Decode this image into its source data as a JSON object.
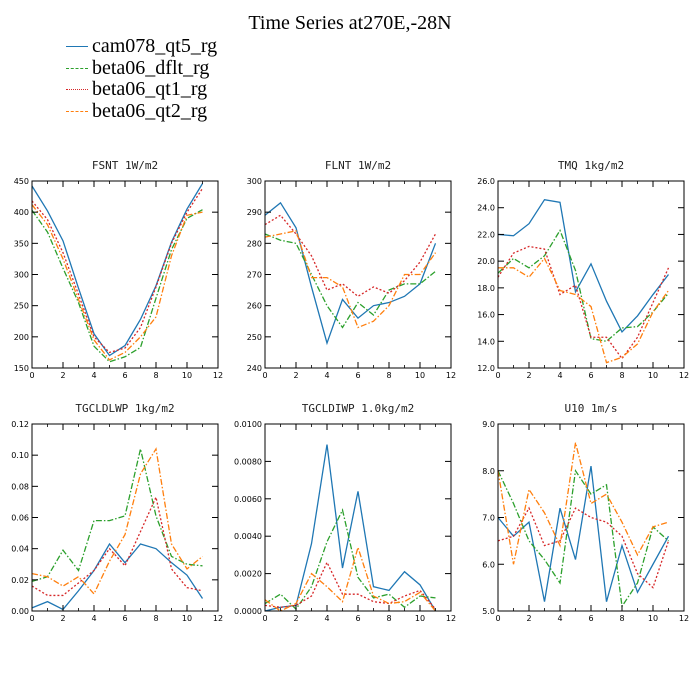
{
  "title": "Time Series at270E,-28N",
  "legend": [
    {
      "name": "cam078_qt5_rg",
      "color": "#1f77b4",
      "style": "solid"
    },
    {
      "name": "beta06_dflt_rg",
      "color": "#2ca02c",
      "style": "dashdot"
    },
    {
      "name": "beta06_qt1_rg",
      "color": "#d62728",
      "style": "dotted"
    },
    {
      "name": "beta06_qt2_rg",
      "color": "#ff7f0e",
      "style": "dashdot"
    }
  ],
  "chart_data": [
    {
      "type": "line",
      "title": "FSNT  1W/m2",
      "x": [
        0,
        1,
        2,
        3,
        4,
        5,
        6,
        7,
        8,
        9,
        10,
        11
      ],
      "xlim": [
        0,
        12
      ],
      "xticks": [
        0,
        2,
        4,
        6,
        8,
        10,
        12
      ],
      "ylim": [
        150,
        450
      ],
      "yticks": [
        150,
        200,
        250,
        300,
        350,
        400,
        450
      ],
      "yticklabels": [
        "150",
        "200",
        "250",
        "300",
        "350",
        "400",
        "450"
      ],
      "series": [
        {
          "name": "cam078_qt5_rg",
          "values": [
            442,
            402,
            354,
            278,
            205,
            170,
            186,
            228,
            282,
            352,
            405,
            446
          ]
        },
        {
          "name": "beta06_dflt_rg",
          "values": [
            403,
            368,
            310,
            255,
            185,
            160,
            168,
            183,
            262,
            340,
            390,
            404
          ]
        },
        {
          "name": "beta06_qt1_rg",
          "values": [
            418,
            388,
            335,
            268,
            200,
            175,
            182,
            215,
            280,
            350,
            400,
            438
          ]
        },
        {
          "name": "beta06_qt2_rg",
          "values": [
            412,
            380,
            325,
            260,
            195,
            163,
            175,
            200,
            232,
            330,
            395,
            400
          ]
        }
      ]
    },
    {
      "type": "line",
      "title": "FLNT  1W/m2",
      "x": [
        0,
        1,
        2,
        3,
        4,
        5,
        6,
        7,
        8,
        9,
        10,
        11
      ],
      "xlim": [
        0,
        12
      ],
      "xticks": [
        0,
        2,
        4,
        6,
        8,
        10,
        12
      ],
      "ylim": [
        240,
        300
      ],
      "yticks": [
        240,
        250,
        260,
        270,
        280,
        290,
        300
      ],
      "yticklabels": [
        "240",
        "250",
        "260",
        "270",
        "280",
        "290",
        "300"
      ],
      "series": [
        {
          "name": "cam078_qt5_rg",
          "values": [
            289,
            293,
            285,
            266,
            248,
            262,
            256,
            260,
            261,
            263,
            267,
            280
          ]
        },
        {
          "name": "beta06_dflt_rg",
          "values": [
            283,
            281,
            280,
            270,
            260,
            253,
            261,
            257,
            265,
            267,
            267,
            271
          ]
        },
        {
          "name": "beta06_qt1_rg",
          "values": [
            286,
            289,
            283,
            276,
            265,
            267,
            263,
            266,
            264,
            268,
            274,
            283
          ]
        },
        {
          "name": "beta06_qt2_rg",
          "values": [
            282,
            283,
            284,
            269,
            269,
            266,
            253,
            255,
            260,
            270,
            270,
            277
          ]
        }
      ]
    },
    {
      "type": "line",
      "title": "TMQ  1kg/m2",
      "x": [
        0,
        1,
        2,
        3,
        4,
        5,
        6,
        7,
        8,
        9,
        10,
        11
      ],
      "xlim": [
        0,
        12
      ],
      "xticks": [
        0,
        2,
        4,
        6,
        8,
        10,
        12
      ],
      "ylim": [
        12,
        26
      ],
      "yticks": [
        12,
        14,
        16,
        18,
        20,
        22,
        24,
        26
      ],
      "yticklabels": [
        "12.0",
        "14.0",
        "16.0",
        "18.0",
        "20.0",
        "22.0",
        "24.0",
        "26.0"
      ],
      "series": [
        {
          "name": "cam078_qt5_rg",
          "values": [
            22.0,
            21.9,
            22.8,
            24.6,
            24.4,
            17.7,
            19.8,
            17.0,
            14.7,
            15.9,
            17.5,
            19.0
          ]
        },
        {
          "name": "beta06_dflt_rg",
          "values": [
            19.1,
            20.2,
            19.5,
            20.4,
            22.3,
            19.3,
            14.2,
            14.0,
            15.0,
            15.1,
            16.2,
            17.6
          ]
        },
        {
          "name": "beta06_qt1_rg",
          "values": [
            18.8,
            20.6,
            21.1,
            20.9,
            17.5,
            18.2,
            14.3,
            14.3,
            12.7,
            14.3,
            16.9,
            19.5
          ]
        },
        {
          "name": "beta06_qt2_rg",
          "values": [
            19.5,
            19.5,
            18.8,
            20.2,
            17.8,
            17.5,
            16.6,
            12.4,
            12.8,
            13.8,
            16.2,
            17.8
          ]
        }
      ]
    },
    {
      "type": "line",
      "title": "TGCLDLWP  1kg/m2",
      "x": [
        0,
        1,
        2,
        3,
        4,
        5,
        6,
        7,
        8,
        9,
        10,
        11
      ],
      "xlim": [
        0,
        12
      ],
      "xticks": [
        0,
        2,
        4,
        6,
        8,
        10,
        12
      ],
      "ylim": [
        0,
        0.12
      ],
      "yticks": [
        0,
        0.02,
        0.04,
        0.06,
        0.08,
        0.1,
        0.12
      ],
      "yticklabels": [
        "0.00",
        "0.02",
        "0.04",
        "0.06",
        "0.08",
        "0.10",
        "0.12"
      ],
      "series": [
        {
          "name": "cam078_qt5_rg",
          "values": [
            0.002,
            0.006,
            0.001,
            0.013,
            0.026,
            0.043,
            0.031,
            0.043,
            0.04,
            0.031,
            0.023,
            0.008
          ]
        },
        {
          "name": "beta06_dflt_rg",
          "values": [
            0.019,
            0.022,
            0.039,
            0.026,
            0.058,
            0.058,
            0.061,
            0.104,
            0.061,
            0.035,
            0.03,
            0.029
          ]
        },
        {
          "name": "beta06_qt1_rg",
          "values": [
            0.016,
            0.01,
            0.01,
            0.018,
            0.026,
            0.04,
            0.029,
            0.051,
            0.073,
            0.027,
            0.015,
            0.013
          ]
        },
        {
          "name": "beta06_qt2_rg",
          "values": [
            0.024,
            0.022,
            0.016,
            0.022,
            0.011,
            0.032,
            0.049,
            0.088,
            0.104,
            0.043,
            0.027,
            0.035
          ]
        }
      ]
    },
    {
      "type": "line",
      "title": "TGCLDIWP  1.0kg/m2",
      "x": [
        0,
        1,
        2,
        3,
        4,
        5,
        6,
        7,
        8,
        9,
        10,
        11
      ],
      "xlim": [
        0,
        12
      ],
      "xticks": [
        0,
        2,
        4,
        6,
        8,
        10,
        12
      ],
      "ylim": [
        0,
        0.01
      ],
      "yticks": [
        0,
        0.002,
        0.004,
        0.006,
        0.008,
        0.01
      ],
      "yticklabels": [
        "0.0000",
        "0.0020",
        "0.0040",
        "0.0060",
        "0.0080",
        "0.0100"
      ],
      "series": [
        {
          "name": "cam078_qt5_rg",
          "values": [
            0.0,
            0.0002,
            0.0003,
            0.0036,
            0.0089,
            0.0023,
            0.0064,
            0.0013,
            0.0011,
            0.0021,
            0.0014,
            0.0
          ]
        },
        {
          "name": "beta06_dflt_rg",
          "values": [
            0.0004,
            0.0009,
            0.0001,
            0.0013,
            0.0037,
            0.0054,
            0.0018,
            0.0007,
            0.0009,
            0.0002,
            0.0008,
            0.0007
          ]
        },
        {
          "name": "beta06_qt1_rg",
          "values": [
            0.0003,
            0.0002,
            0.0003,
            0.0008,
            0.0026,
            0.0009,
            0.0009,
            0.0005,
            0.0004,
            0.0008,
            0.0011,
            0.0001
          ]
        },
        {
          "name": "beta06_qt2_rg",
          "values": [
            0.0006,
            0.0,
            0.0004,
            0.002,
            0.0013,
            0.0005,
            0.0034,
            0.0008,
            0.0004,
            0.0005,
            0.001,
            0.0
          ]
        }
      ]
    },
    {
      "type": "line",
      "title": "U10  1m/s",
      "x": [
        0,
        1,
        2,
        3,
        4,
        5,
        6,
        7,
        8,
        9,
        10,
        11
      ],
      "xlim": [
        0,
        12
      ],
      "xticks": [
        0,
        2,
        4,
        6,
        8,
        10,
        12
      ],
      "ylim": [
        5,
        9
      ],
      "yticks": [
        5,
        6,
        7,
        8,
        9
      ],
      "yticklabels": [
        "5.0",
        "6.0",
        "7.0",
        "8.0",
        "9.0"
      ],
      "series": [
        {
          "name": "cam078_qt5_rg",
          "values": [
            7.0,
            6.6,
            6.9,
            5.2,
            7.2,
            6.1,
            8.1,
            5.2,
            6.4,
            5.4,
            6.0,
            6.6
          ]
        },
        {
          "name": "beta06_dflt_rg",
          "values": [
            8.0,
            7.3,
            6.5,
            6.1,
            5.6,
            8.0,
            7.5,
            7.7,
            5.1,
            5.6,
            6.8,
            6.5
          ]
        },
        {
          "name": "beta06_qt1_rg",
          "values": [
            6.5,
            6.6,
            7.2,
            6.4,
            6.5,
            7.2,
            7.0,
            6.9,
            6.6,
            5.8,
            5.5,
            6.5
          ]
        },
        {
          "name": "beta06_qt2_rg",
          "values": [
            8.0,
            6.0,
            7.6,
            7.1,
            6.4,
            8.6,
            7.3,
            7.5,
            6.9,
            6.2,
            6.8,
            6.9
          ]
        }
      ]
    }
  ]
}
